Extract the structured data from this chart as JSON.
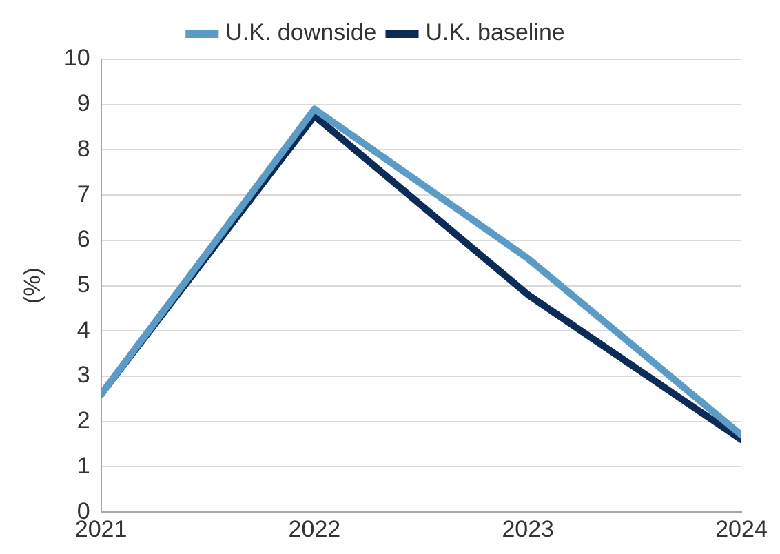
{
  "chart_data": {
    "type": "line",
    "ylabel": "(%)",
    "x": [
      2021,
      2022,
      2023,
      2024
    ],
    "xlim": [
      2021,
      2024
    ],
    "xticks": [
      2021,
      2022,
      2023,
      2024
    ],
    "ylim": [
      0,
      10
    ],
    "yticks": [
      0,
      1,
      2,
      3,
      4,
      5,
      6,
      7,
      8,
      9,
      10
    ],
    "series": [
      {
        "name": "U.K. downside",
        "color": "#5b9bc6",
        "values": [
          2.6,
          8.9,
          5.6,
          1.7
        ]
      },
      {
        "name": "U.K. baseline",
        "color": "#0c2b57",
        "values": [
          2.6,
          8.75,
          4.8,
          1.6
        ]
      }
    ],
    "grid": "y",
    "legend": "top",
    "marker": "none",
    "line_style": "solid"
  }
}
